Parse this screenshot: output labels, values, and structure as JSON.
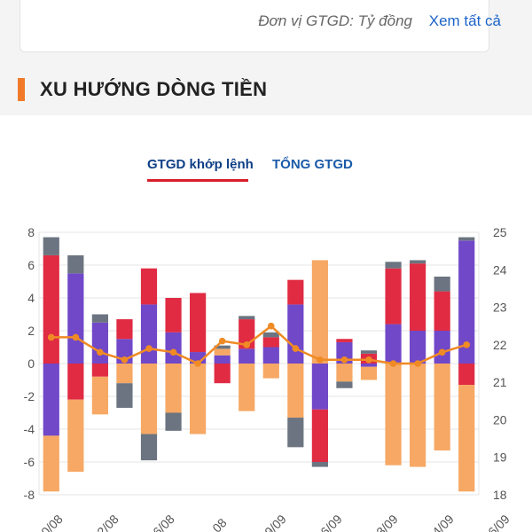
{
  "header": {
    "unit_note": "Đơn vị GTGD: Tỷ đồng",
    "view_all": "Xem tất cả"
  },
  "section": {
    "title": "XU HƯỚNG DÒNG TIỀN"
  },
  "tabs": [
    {
      "label": "GTGD khớp lệnh",
      "active": true
    },
    {
      "label": "TỔNG GTGD",
      "active": false
    }
  ],
  "colors": {
    "accent_orange": "#f07a28",
    "tab_underline": "#d81f2b",
    "link_blue": "#1c64c8"
  },
  "chart_data": {
    "type": "bar",
    "stacked": true,
    "x_tick_labels": [
      "0/08",
      "2/08",
      "6/08",
      "08",
      "9/09",
      "6/09",
      "3/09",
      "4/09",
      "6/09"
    ],
    "left_axis": {
      "ticks": [
        8,
        6,
        4,
        2,
        0,
        -2,
        -4,
        -6,
        -8
      ],
      "range": [
        -8,
        8
      ]
    },
    "right_axis": {
      "ticks": [
        25,
        24,
        23,
        22,
        21,
        20,
        19,
        18
      ],
      "range": [
        18,
        25
      ]
    },
    "grid": true,
    "series": [
      {
        "color": "#7048c8",
        "values": [
          -4.4,
          5.5,
          2.5,
          1.5,
          3.6,
          1.9,
          0.7,
          0.5,
          0.9,
          1.0,
          3.6,
          -2.8,
          1.3,
          -0.2,
          2.4,
          2.0,
          2.0,
          7.5
        ]
      },
      {
        "color": "#e02b43",
        "values": [
          6.6,
          -2.2,
          -0.8,
          1.2,
          2.2,
          2.1,
          3.6,
          -1.2,
          1.8,
          0.6,
          1.5,
          -3.2,
          0.2,
          0.6,
          3.4,
          4.1,
          2.4,
          -1.3
        ]
      },
      {
        "color": "#f6a864",
        "values": [
          -3.4,
          -4.4,
          -2.3,
          -1.2,
          -4.3,
          -3.0,
          -4.3,
          0.4,
          -2.9,
          -0.9,
          -3.3,
          6.3,
          -1.1,
          -0.8,
          -6.2,
          -6.3,
          -5.3,
          -6.5
        ]
      },
      {
        "color": "#6b7480",
        "values": [
          1.1,
          1.1,
          0.5,
          -1.5,
          -1.6,
          -1.1,
          0,
          0.2,
          0.2,
          0.3,
          -1.8,
          -0.3,
          -0.4,
          0.2,
          0.4,
          0.2,
          0.9,
          0.2
        ]
      },
      {
        "type": "line",
        "axis": "right",
        "color": "#f08a24",
        "values": [
          22.2,
          22.2,
          21.8,
          21.6,
          21.9,
          21.8,
          21.5,
          22.1,
          22.0,
          22.5,
          21.9,
          21.6,
          21.6,
          21.6,
          21.5,
          21.5,
          21.8,
          22.0
        ]
      }
    ]
  }
}
